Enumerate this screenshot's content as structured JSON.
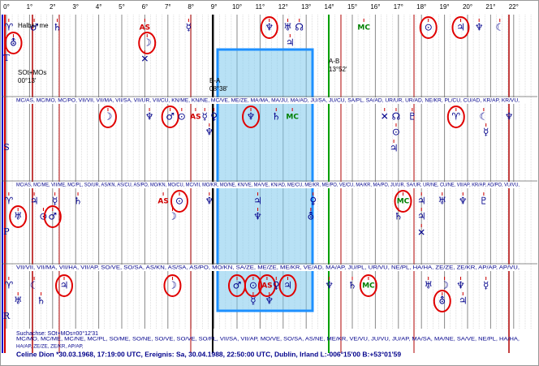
{
  "degrees": [
    "0°",
    "1°",
    "2°",
    "3°",
    "4°",
    "5°",
    "6°",
    "7°",
    "8°",
    "9°",
    "10°",
    "11°",
    "12°",
    "13°",
    "14°",
    "15°",
    "16°",
    "17°",
    "18°",
    "19°",
    "20°",
    "21°",
    "22°"
  ],
  "sections": [
    {
      "label": "T",
      "lines": [
        [
          {
            "glyph": "♈",
            "deg": 0.1
          },
          {
            "glyph": "♂",
            "deg": 1.2
          },
          {
            "glyph": "♄",
            "deg": 2.2
          },
          {
            "glyph": "AS",
            "deg": 6.0,
            "color": "#d00000"
          },
          {
            "glyph": "☿",
            "deg": 7.9
          },
          {
            "glyph": "♆",
            "deg": 11.4,
            "circled": true
          },
          {
            "glyph": "♅",
            "deg": 12.2
          },
          {
            "glyph": "☊",
            "deg": 12.7
          },
          {
            "glyph": "MC",
            "deg": 15.5,
            "color": "#008000"
          },
          {
            "glyph": "⊙",
            "deg": 18.3,
            "circled": true
          },
          {
            "glyph": "♃",
            "deg": 19.7,
            "circled": true
          },
          {
            "glyph": "♆",
            "deg": 20.5
          },
          {
            "glyph": "☾",
            "deg": 21.4
          }
        ],
        [
          {
            "glyph": "⛢",
            "deg": 0.3,
            "circled": true
          },
          {
            "glyph": "☽",
            "deg": 6.1,
            "circled": true
          },
          {
            "glyph": "♃",
            "deg": 12.3
          }
        ],
        [
          {
            "glyph": "✕",
            "deg": 6.0
          }
        ]
      ]
    },
    {
      "label": "S",
      "lines": [
        [
          {
            "glyph": "☽",
            "deg": 4.4,
            "circled": true
          },
          {
            "glyph": "♆",
            "deg": 6.2
          },
          {
            "glyph": "♂",
            "deg": 7.1,
            "circled": true
          },
          {
            "glyph": "⊙",
            "deg": 7.6
          },
          {
            "glyph": "AS",
            "deg": 8.2,
            "color": "#d00000"
          },
          {
            "glyph": "☿",
            "deg": 8.6
          },
          {
            "glyph": "♀",
            "deg": 9.0
          },
          {
            "glyph": "♆",
            "deg": 10.6,
            "circled": true
          },
          {
            "glyph": "♄",
            "deg": 11.7
          },
          {
            "glyph": "MC",
            "deg": 12.4,
            "color": "#008000"
          },
          {
            "glyph": "✕",
            "deg": 16.4
          },
          {
            "glyph": "☊",
            "deg": 16.9
          },
          {
            "glyph": "♇",
            "deg": 17.6
          },
          {
            "glyph": "♈",
            "deg": 19.5,
            "circled": true
          },
          {
            "glyph": "☾",
            "deg": 20.7
          },
          {
            "glyph": "♆",
            "deg": 21.8
          }
        ],
        [
          {
            "glyph": "♆",
            "deg": 8.8
          },
          {
            "glyph": "⊙",
            "deg": 16.9
          },
          {
            "glyph": "☿",
            "deg": 20.8
          }
        ],
        [
          {
            "glyph": "♃",
            "deg": 16.8
          }
        ]
      ]
    },
    {
      "label": "P",
      "lines": [
        [
          {
            "glyph": "♈",
            "deg": 0.1
          },
          {
            "glyph": "♃",
            "deg": 1.2
          },
          {
            "glyph": "☿",
            "deg": 2.1
          },
          {
            "glyph": "♄",
            "deg": 3.1
          },
          {
            "glyph": "AS",
            "deg": 6.8,
            "color": "#d00000"
          },
          {
            "glyph": "⊙",
            "deg": 7.5,
            "circled": true
          },
          {
            "glyph": "♆",
            "deg": 8.8
          },
          {
            "glyph": "♃",
            "deg": 10.9
          },
          {
            "glyph": "♀",
            "deg": 13.3
          },
          {
            "glyph": "MC",
            "deg": 17.2,
            "color": "#008000",
            "circled": true
          },
          {
            "glyph": "♃",
            "deg": 18.0
          },
          {
            "glyph": "♅",
            "deg": 18.9
          },
          {
            "glyph": "♆",
            "deg": 19.8
          },
          {
            "glyph": "♇",
            "deg": 20.7
          }
        ],
        [
          {
            "glyph": "♅",
            "deg": 0.5,
            "circled": true
          },
          {
            "glyph": "⊙",
            "deg": 1.6
          },
          {
            "glyph": "♂",
            "deg": 2.0,
            "circled": true
          },
          {
            "glyph": "☽",
            "deg": 7.2
          },
          {
            "glyph": "♆",
            "deg": 10.9
          },
          {
            "glyph": "⛢",
            "deg": 13.2
          },
          {
            "glyph": "♄",
            "deg": 17.0
          },
          {
            "glyph": "♃",
            "deg": 18.0
          }
        ],
        [
          {
            "glyph": "✕",
            "deg": 18.0
          }
        ]
      ]
    },
    {
      "label": "R",
      "lines": [
        [
          {
            "glyph": "♈",
            "deg": 0.1
          },
          {
            "glyph": "☾",
            "deg": 1.2
          },
          {
            "glyph": "♃",
            "deg": 2.5,
            "circled": true
          },
          {
            "glyph": "☽",
            "deg": 7.2,
            "circled": true
          },
          {
            "glyph": "♂",
            "deg": 10.0,
            "circled": true
          },
          {
            "glyph": "⊙",
            "deg": 10.7,
            "circled": true
          },
          {
            "glyph": "AS",
            "deg": 11.3,
            "color": "#d00000",
            "circled": true
          },
          {
            "glyph": "♀",
            "deg": 11.7
          },
          {
            "glyph": "♃",
            "deg": 12.2,
            "circled": true
          },
          {
            "glyph": "♆",
            "deg": 14.0
          },
          {
            "glyph": "♄",
            "deg": 15.0
          },
          {
            "glyph": "MC",
            "deg": 15.7,
            "color": "#008000",
            "circled": true
          },
          {
            "glyph": "♅",
            "deg": 18.3
          },
          {
            "glyph": "☽",
            "deg": 19.0
          },
          {
            "glyph": "♆",
            "deg": 19.7
          },
          {
            "glyph": "☿",
            "deg": 20.8
          }
        ],
        [
          {
            "glyph": "♅",
            "deg": 0.5
          },
          {
            "glyph": "♄",
            "deg": 1.5
          },
          {
            "glyph": "☿",
            "deg": 10.7
          },
          {
            "glyph": "♆",
            "deg": 11.4
          },
          {
            "glyph": "⛢",
            "deg": 18.9,
            "circled": true
          },
          {
            "glyph": "♃",
            "deg": 19.8
          }
        ],
        []
      ]
    }
  ],
  "midpoint_rows": [
    "MC/AS, MC/MO, MC/PO, VII/VII, VII/MA, VII/SA, VII/UR, VII/CU, KN/ME, KN/NE, MC/VE, ME/ZE, MA/MA, MA/JU, MA/AD, JU/SA, JU/CU, SA/PL, SA/AD, UR/UR, UR/AD, NE/KR, PL/CU, CU/AD, KR/AP, KR/VU,",
    "MC/AS, MC/ME, VII/ME, MC/PL, SO/UR, AS/KN, AS/CU, AS/PO, MO/KN, MO/CU, MC/VII, MO/KR, MO/NE, KN/VE, MA/VE, KN/AD, ME/CU, ME/KR, ME/PO, VE/CU, MA/KR, MA/PO, JU/UR, SA/UR, UR/NE, CU/NE, VII/AP, KR/AP, AD/PO, VU/VU,",
    "VII/VII, VII/MA, VII/HA, VII/AP, SO/VE, SO/SA, AS/KN, AS/SA, AS/PO, MO/KN, SA/ZE, ME/ZE, ME/KR, VE/AD, MA/AP, JU/PL, UR/VU, NE/PL, HA/HA, ZE/ZE, ZE/KR, AP/AP, AP/VU,",
    "MC/MO, MC/ME, MC/NE, MC/PL, SO/ME, SO/NE, SO/VE, SO/VE, SO/PL, VII/SA, VII/AP, MO/VE, SO/SA, AS/NE, ME/KR, VE/VU, JU/VU, JU/AP, MA/SA, MA/NE, SA/VE, NE/PL, HA/HA,",
    "HA/AP, ZE/ZE, ZE/KR, AP/AP,"
  ],
  "notes": {
    "halbsumme": "Halbs♂me",
    "sot_name": "SOt+MOs",
    "sot_value": "00°13'",
    "ba_name": "B-A",
    "ba_value": "08°38'",
    "ab_name": "A-B",
    "ab_value": "13°52'",
    "suchachse": "Suchachse: SOt+MOs=00°12'31"
  },
  "footer": "Celine Dion  *30.03.1968, 17:19:00 UTC, Ereignis: Sa, 30.04.1988, 22:50:00 UTC, Dublin, Irland  L:-006°15'00 B:+53°01'59"
}
